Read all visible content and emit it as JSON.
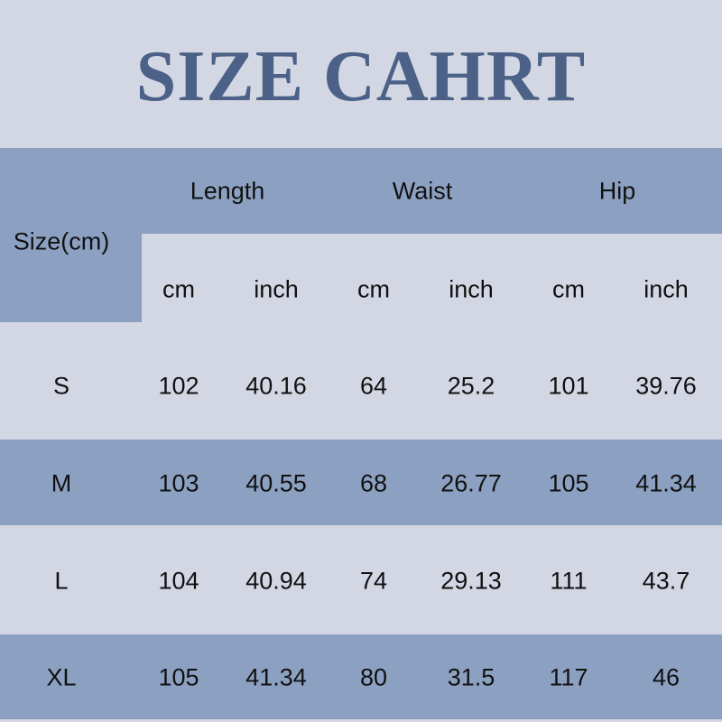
{
  "title": "SIZE CAHRT",
  "colors": {
    "background": "#d3d7e3",
    "band": "#8ca1c2",
    "title": "#4b6187"
  },
  "header": {
    "size_label": "Size(cm)",
    "groups": [
      "Length",
      "Waist",
      "Hip"
    ],
    "units": [
      "cm",
      "inch",
      "cm",
      "inch",
      "cm",
      "inch"
    ]
  },
  "rows": [
    {
      "size": "S",
      "values": [
        "102",
        "40.16",
        "64",
        "25.2",
        "101",
        "39.76"
      ]
    },
    {
      "size": "M",
      "values": [
        "103",
        "40.55",
        "68",
        "26.77",
        "105",
        "41.34"
      ]
    },
    {
      "size": "L",
      "values": [
        "104",
        "40.94",
        "74",
        "29.13",
        "111",
        "43.7"
      ]
    },
    {
      "size": "XL",
      "values": [
        "105",
        "41.34",
        "80",
        "31.5",
        "117",
        "46"
      ]
    }
  ]
}
